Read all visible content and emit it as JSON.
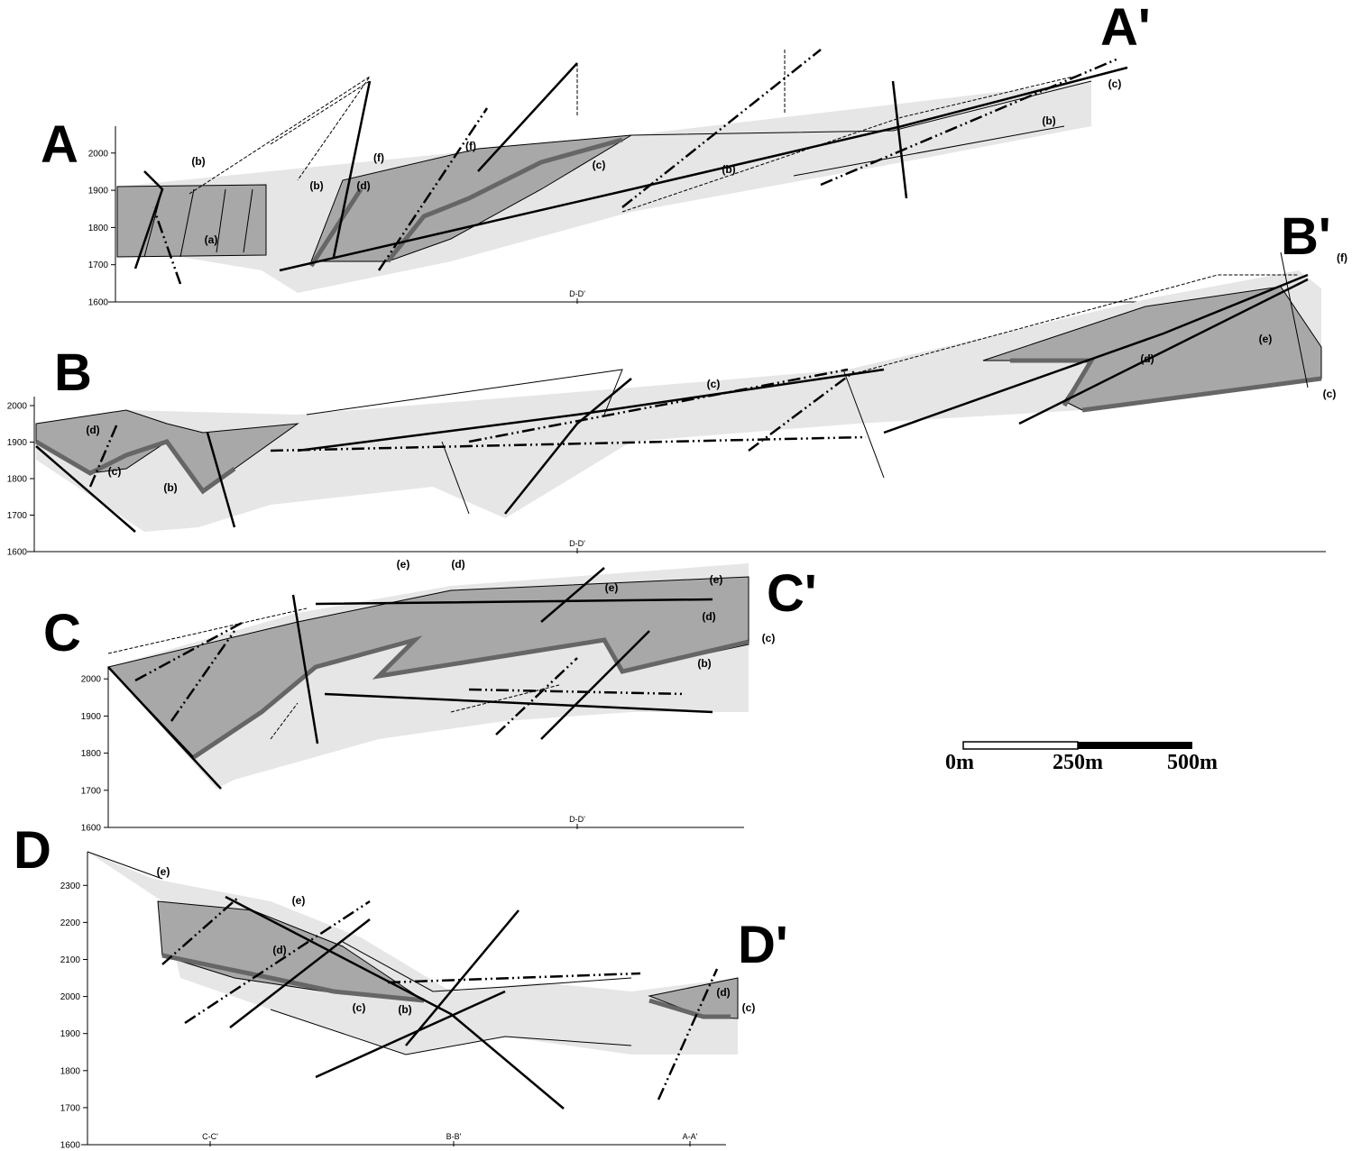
{
  "sections": [
    {
      "start": "A",
      "end": "A'",
      "elevation_ticks": [
        1600,
        1700,
        1800,
        1900,
        2000
      ],
      "units": [
        "(b)",
        "(f)",
        "(f)",
        "(b)",
        "(d)",
        "(c)",
        "(b)",
        "(a)",
        "(c)",
        "(b)"
      ],
      "markers": [
        "D-D'"
      ]
    },
    {
      "start": "B",
      "end": "B'",
      "elevation_ticks": [
        1600,
        1700,
        1800,
        1900,
        2000
      ],
      "units": [
        "(d)",
        "(c)",
        "(b)",
        "(c)",
        "(d)",
        "(e)",
        "(f)",
        "(c)"
      ],
      "markers": [
        "D-D'"
      ]
    },
    {
      "start": "C",
      "end": "C'",
      "elevation_ticks": [
        1600,
        1700,
        1800,
        1900,
        2000
      ],
      "units": [
        "(e)",
        "(d)",
        "(e)",
        "(e)",
        "(d)",
        "(c)",
        "(b)"
      ],
      "markers": [
        "D-D'"
      ]
    },
    {
      "start": "D",
      "end": "D'",
      "elevation_ticks": [
        1600,
        1700,
        1800,
        1900,
        2000,
        2100,
        2200,
        2300
      ],
      "units": [
        "(e)",
        "(e)",
        "(d)",
        "(c)",
        "(b)",
        "(d)",
        "(c)"
      ],
      "markers": [
        "C-C'",
        "B-B'",
        "A-A'"
      ]
    }
  ],
  "scale_bar": {
    "labels": [
      "0m",
      "250m",
      "500m"
    ]
  }
}
